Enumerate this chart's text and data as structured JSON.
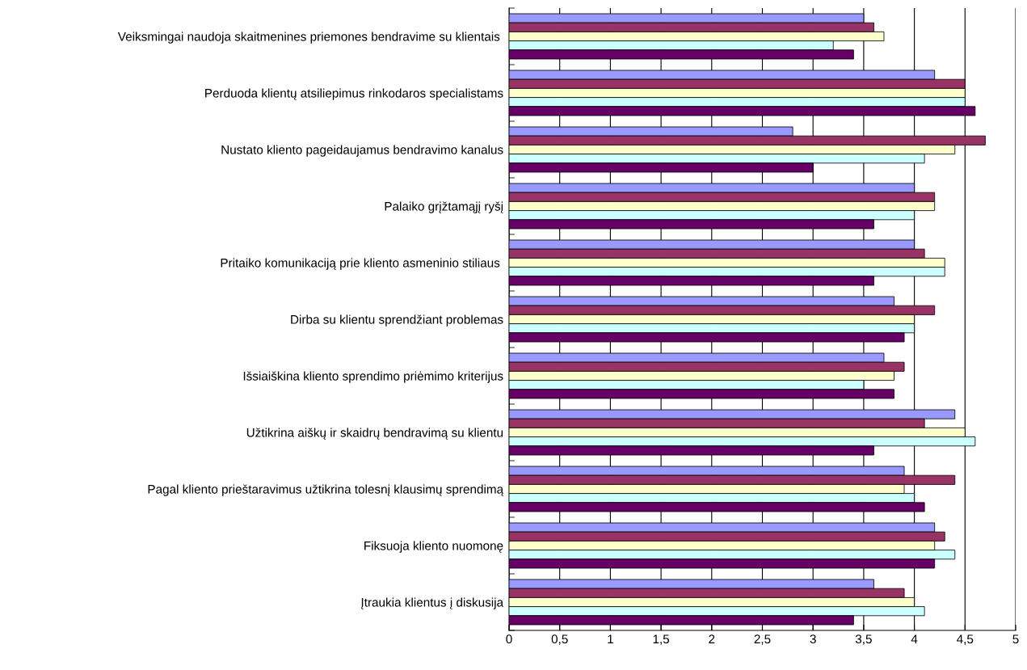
{
  "chart_data": {
    "type": "bar",
    "orientation": "horizontal",
    "categories": [
      "Veiksmingai naudoja skaitmenines priemones bendravime su klientais ",
      "Perduoda klientų atsiliepimus rinkodaros specialistams",
      "Nustato kliento pageidaujamus bendravimo kanalus",
      "Palaiko grįžtamąjį ryšį",
      "Pritaiko komunikaciją prie kliento asmeninio stiliaus ",
      "Dirba su klientu sprendžiant problemas",
      "Išsiaiškina kliento sprendimo priėmimo kriterijus",
      "Užtikrina aiškų ir skaidrų bendravimą su klientu",
      "Pagal kliento prieštaravimus užtikrina tolesnį klausimų sprendimą",
      "Fiksuoja kliento nuomonę",
      "Įtraukia klientus į diskusija"
    ],
    "series": [
      {
        "color": "#9999ff",
        "values": [
          3.5,
          4.2,
          2.8,
          4.0,
          4.0,
          3.8,
          3.7,
          4.4,
          3.9,
          4.2,
          3.6
        ]
      },
      {
        "color": "#993366",
        "values": [
          3.6,
          4.5,
          4.7,
          4.2,
          4.1,
          4.2,
          3.9,
          4.1,
          4.4,
          4.3,
          3.9
        ]
      },
      {
        "color": "#ffffcc",
        "values": [
          3.7,
          4.5,
          4.4,
          4.2,
          4.3,
          4.0,
          3.8,
          4.5,
          3.9,
          4.2,
          4.0
        ]
      },
      {
        "color": "#ccffff",
        "values": [
          3.2,
          4.5,
          4.1,
          4.0,
          4.3,
          4.0,
          3.5,
          4.6,
          4.0,
          4.4,
          4.1
        ]
      },
      {
        "color": "#660066",
        "values": [
          3.4,
          4.6,
          3.0,
          3.6,
          3.6,
          3.9,
          3.8,
          3.6,
          4.1,
          4.2,
          3.4
        ]
      }
    ],
    "xlim": [
      0,
      5
    ],
    "xticks": [
      0,
      {
        "value": 0.5,
        "label": "0,5"
      },
      1,
      {
        "value": 1.5,
        "label": "1,5"
      },
      2,
      {
        "value": 2.5,
        "label": "2,5"
      },
      3,
      {
        "value": 3.5,
        "label": "3,5"
      },
      4,
      {
        "value": 4.5,
        "label": "4,5"
      },
      5
    ],
    "grid": "x"
  }
}
